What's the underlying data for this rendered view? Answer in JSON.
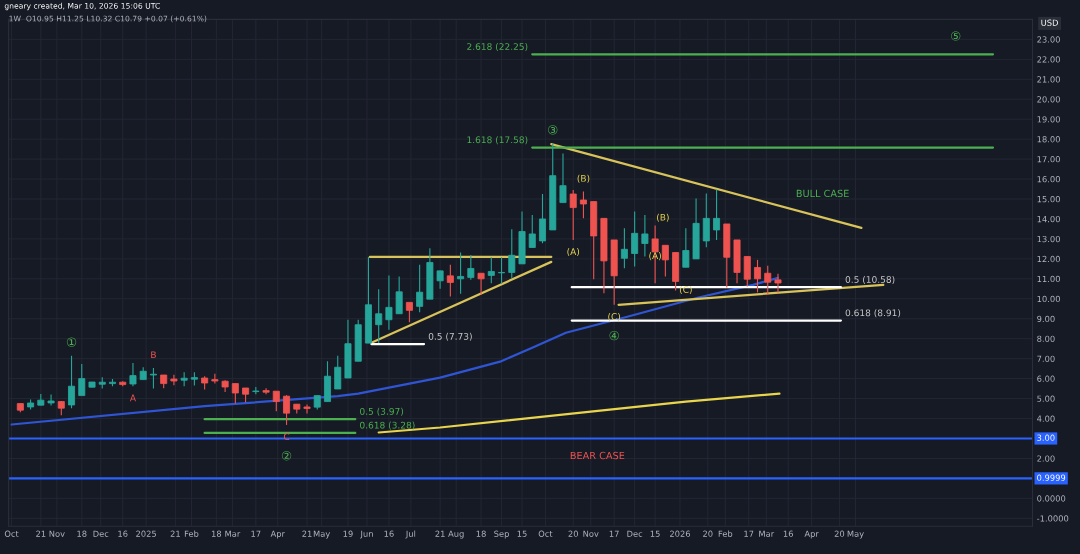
{
  "chart_data": {
    "type": "candlestick",
    "title": "gneary created, Mar 10, 2026 15:06 UTC",
    "subtitle": "1W  O10.95 H11.25 L10.32 C10.79 +0.07 (+0.61%)",
    "ylabel": "USD",
    "x": [
      "2024-10-07",
      "2024-10-14",
      "2024-10-21",
      "2024-10-28",
      "2024-11-04",
      "2024-11-11",
      "2024-11-18",
      "2024-11-25",
      "2024-12-02",
      "2024-12-09",
      "2024-12-16",
      "2024-12-23",
      "2024-12-30",
      "2025-01-06",
      "2025-01-13",
      "2025-01-20",
      "2025-01-27",
      "2025-02-03",
      "2025-02-10",
      "2025-02-17",
      "2025-02-24",
      "2025-03-03",
      "2025-03-10",
      "2025-03-17",
      "2025-03-24",
      "2025-03-31",
      "2025-04-07",
      "2025-04-14",
      "2025-04-21",
      "2025-04-28",
      "2025-05-05",
      "2025-05-12",
      "2025-05-19",
      "2025-05-26",
      "2025-06-02",
      "2025-06-09",
      "2025-06-16",
      "2025-06-23",
      "2025-06-30",
      "2025-07-07",
      "2025-07-14",
      "2025-07-21",
      "2025-07-28",
      "2025-08-04",
      "2025-08-11",
      "2025-08-18",
      "2025-08-25",
      "2025-09-01",
      "2025-09-08",
      "2025-09-15",
      "2025-09-22",
      "2025-09-29",
      "2025-10-06",
      "2025-10-13",
      "2025-10-20",
      "2025-10-27",
      "2025-11-03",
      "2025-11-10",
      "2025-11-17",
      "2025-11-24",
      "2025-12-01",
      "2025-12-08",
      "2025-12-15",
      "2025-12-22",
      "2025-12-29",
      "2026-01-05",
      "2026-01-12",
      "2026-01-19",
      "2026-01-26",
      "2026-02-02",
      "2026-02-09",
      "2026-02-16",
      "2026-02-23",
      "2026-03-02",
      "2026-03-09"
    ],
    "ohlc": [
      [
        4.75,
        4.75,
        4.32,
        4.42
      ],
      [
        4.58,
        4.95,
        4.45,
        4.78
      ],
      [
        4.67,
        5.23,
        4.67,
        4.92
      ],
      [
        4.78,
        5.2,
        4.65,
        4.88
      ],
      [
        4.85,
        4.88,
        4.17,
        4.52
      ],
      [
        4.68,
        7.15,
        4.52,
        5.62
      ],
      [
        5.15,
        6.73,
        5.15,
        6.0
      ],
      [
        5.57,
        5.83,
        5.57,
        5.83
      ],
      [
        5.72,
        6.07,
        5.5,
        5.82
      ],
      [
        5.75,
        5.98,
        5.62,
        5.82
      ],
      [
        5.82,
        5.87,
        5.62,
        5.7
      ],
      [
        5.73,
        6.78,
        5.62,
        6.15
      ],
      [
        5.95,
        6.57,
        5.95,
        6.37
      ],
      [
        6.18,
        6.53,
        5.5,
        6.22
      ],
      [
        6.18,
        6.18,
        5.52,
        5.75
      ],
      [
        5.98,
        6.2,
        5.67,
        5.88
      ],
      [
        5.92,
        6.32,
        5.62,
        6.02
      ],
      [
        5.97,
        6.32,
        5.65,
        6.05
      ],
      [
        6.03,
        6.12,
        5.45,
        5.78
      ],
      [
        5.95,
        6.25,
        5.75,
        5.88
      ],
      [
        5.87,
        5.92,
        5.33,
        5.58
      ],
      [
        5.75,
        5.75,
        4.75,
        5.28
      ],
      [
        5.53,
        5.53,
        4.82,
        5.22
      ],
      [
        5.35,
        5.58,
        5.22,
        5.38
      ],
      [
        5.4,
        5.52,
        5.22,
        5.32
      ],
      [
        5.37,
        5.37,
        4.37,
        4.85
      ],
      [
        5.12,
        5.17,
        3.68,
        4.27
      ],
      [
        4.72,
        4.72,
        4.25,
        4.47
      ],
      [
        4.58,
        4.7,
        4.25,
        4.5
      ],
      [
        4.57,
        5.15,
        4.45,
        5.15
      ],
      [
        4.85,
        6.87,
        4.85,
        6.12
      ],
      [
        5.48,
        7.15,
        5.48,
        6.57
      ],
      [
        6.03,
        8.95,
        6.03,
        7.75
      ],
      [
        6.87,
        8.95,
        6.87,
        8.7
      ],
      [
        7.78,
        12.1,
        7.78,
        9.7
      ],
      [
        8.7,
        10.48,
        7.78,
        9.25
      ],
      [
        8.95,
        11.17,
        8.45,
        9.57
      ],
      [
        9.25,
        11.12,
        9.25,
        10.35
      ],
      [
        9.82,
        9.82,
        8.82,
        9.42
      ],
      [
        9.62,
        11.7,
        9.32,
        10.33
      ],
      [
        9.98,
        12.53,
        9.98,
        11.82
      ],
      [
        10.9,
        11.4,
        10.5,
        11.4
      ],
      [
        11.15,
        11.7,
        10.12,
        10.82
      ],
      [
        11.0,
        12.32,
        10.25,
        11.12
      ],
      [
        11.07,
        12.2,
        10.95,
        11.52
      ],
      [
        11.28,
        11.28,
        10.2,
        11.0
      ],
      [
        11.17,
        12.08,
        10.78,
        11.37
      ],
      [
        11.3,
        12.08,
        10.75,
        11.32
      ],
      [
        11.32,
        13.48,
        11.03,
        12.18
      ],
      [
        11.75,
        14.37,
        11.75,
        13.37
      ],
      [
        12.57,
        14.2,
        12.57,
        13.25
      ],
      [
        12.9,
        15.25,
        12.78,
        14.0
      ],
      [
        13.45,
        17.78,
        13.45,
        16.17
      ],
      [
        14.82,
        17.28,
        14.82,
        15.67
      ],
      [
        15.25,
        15.45,
        12.95,
        14.57
      ],
      [
        14.95,
        15.37,
        14.03,
        14.75
      ],
      [
        14.87,
        14.87,
        10.98,
        13.15
      ],
      [
        14.03,
        14.03,
        10.28,
        11.9
      ],
      [
        12.95,
        12.95,
        9.7,
        11.15
      ],
      [
        12.03,
        13.53,
        11.53,
        12.48
      ],
      [
        12.27,
        14.37,
        11.62,
        13.28
      ],
      [
        12.77,
        14.2,
        12.12,
        13.25
      ],
      [
        13.0,
        13.67,
        10.78,
        12.35
      ],
      [
        12.68,
        12.68,
        11.12,
        11.95
      ],
      [
        12.32,
        12.32,
        10.42,
        10.87
      ],
      [
        11.58,
        13.53,
        11.58,
        12.42
      ],
      [
        12.0,
        15.03,
        12.0,
        13.78
      ],
      [
        12.9,
        15.28,
        12.58,
        14.03
      ],
      [
        13.45,
        15.48,
        12.95,
        14.03
      ],
      [
        13.75,
        13.75,
        10.57,
        12.08
      ],
      [
        12.95,
        12.95,
        10.78,
        11.32
      ],
      [
        12.12,
        12.12,
        10.62,
        10.98
      ],
      [
        11.57,
        11.95,
        10.32,
        11.0
      ],
      [
        11.28,
        11.65,
        10.2,
        10.83
      ],
      [
        10.95,
        11.25,
        10.32,
        10.79
      ]
    ],
    "series": [
      {
        "type": "line",
        "color": "#2f55d4",
        "x": [
          "2024-10-01",
          "2025-02-10",
          "2025-05-12",
          "2025-05-26",
          "2025-07-21",
          "2025-08-31",
          "2025-09-22",
          "2025-10-15",
          "2025-11-26",
          "2026-01-13",
          "2026-02-20",
          "2026-03-09"
        ],
        "values": [
          3.7,
          4.62,
          5.12,
          5.25,
          6.05,
          6.85,
          7.55,
          8.3,
          9.1,
          10.05,
          10.7,
          11.05
        ]
      },
      {
        "type": "line",
        "color": "#e8d44d",
        "x": [
          "2025-06-09",
          "2025-07-21",
          "2025-11-01",
          "2026-01-05",
          "2026-03-10"
        ],
        "values": [
          3.3,
          3.55,
          4.35,
          4.85,
          5.25
        ]
      },
      {
        "type": "line",
        "color": "#d8c25a",
        "x": [
          "2025-06-03",
          "2025-10-05"
        ],
        "values": [
          12.1,
          12.1
        ]
      },
      {
        "type": "line",
        "color": "#d8c25a",
        "x": [
          "2025-06-04",
          "2025-10-05"
        ],
        "values": [
          7.8,
          11.85
        ]
      },
      {
        "type": "line",
        "color": "#d8c25a",
        "x": [
          "2025-10-05",
          "2026-05-05"
        ],
        "values": [
          17.75,
          13.55
        ]
      },
      {
        "type": "line",
        "color": "#d8c25a",
        "x": [
          "2025-11-20",
          "2026-05-20"
        ],
        "values": [
          9.7,
          10.7
        ]
      },
      {
        "type": "line",
        "color": "#4caf50",
        "x": [
          "2025-09-22",
          "2026-08-03"
        ],
        "values": [
          22.25,
          22.25
        ]
      },
      {
        "type": "line",
        "color": "#4caf50",
        "x": [
          "2025-09-22",
          "2026-08-03"
        ],
        "values": [
          17.58,
          17.58
        ]
      },
      {
        "type": "line",
        "color": "#ffffff",
        "x": [
          "2025-10-19",
          "2026-04-21"
        ],
        "values": [
          10.58,
          10.58
        ]
      },
      {
        "type": "line",
        "color": "#ffffff",
        "x": [
          "2025-10-19",
          "2026-04-21"
        ],
        "values": [
          8.91,
          8.91
        ]
      },
      {
        "type": "line",
        "color": "#ffffff",
        "x": [
          "2025-06-04",
          "2025-07-10"
        ],
        "values": [
          7.73,
          7.73
        ]
      },
      {
        "type": "line",
        "color": "#4caf50",
        "x": [
          "2025-02-10",
          "2025-05-24"
        ],
        "values": [
          3.97,
          3.97
        ]
      },
      {
        "type": "line",
        "color": "#4caf50",
        "x": [
          "2025-02-10",
          "2025-05-24"
        ],
        "values": [
          3.28,
          3.28
        ]
      }
    ],
    "ref_lines": [
      {
        "axis": "y",
        "value": 3.0,
        "label": "3.00",
        "color": "#2962ff"
      },
      {
        "axis": "y",
        "value": 0.9999,
        "label": "0.9999",
        "color": "#2962ff"
      }
    ],
    "annotations": [
      {
        "text": "①",
        "x": "2024-11-11",
        "y": 7.15
      },
      {
        "text": "A",
        "x": "2024-12-23",
        "y": 5.62
      },
      {
        "text": "B",
        "x": "2025-01-06",
        "y": 6.53
      },
      {
        "text": "C",
        "x": "2025-04-07",
        "y": 3.68
      },
      {
        "text": "②",
        "x": "2025-04-07",
        "y": 3.68
      },
      {
        "text": "③",
        "x": "2025-10-06",
        "y": 17.78
      },
      {
        "text": "(B)",
        "x": "2025-10-27",
        "y": 15.37
      },
      {
        "text": "(A)",
        "x": "2025-10-20",
        "y": 12.95
      },
      {
        "text": "(C)",
        "x": "2025-11-17",
        "y": 9.7
      },
      {
        "text": "④",
        "x": "2025-11-17",
        "y": 9.7
      },
      "(B)",
      {
        "text": "(A)",
        "x": "2025-12-15",
        "y": 12.12
      },
      {
        "text": "(C)",
        "x": "2026-01-05",
        "y": 10.42
      },
      "⑤",
      "BULL CASE",
      "BEAR CASE",
      {
        "text": "2.618 (22.25)",
        "x": "2025-09-22",
        "y": 22.25
      },
      {
        "text": "1.618 (17.58)",
        "x": "2025-09-22",
        "y": 17.58
      },
      {
        "text": "0.5 (10.58)",
        "x": "2026-04-21",
        "y": 10.58
      },
      {
        "text": "0.618 (8.91)",
        "x": "2026-04-21",
        "y": 8.91
      },
      {
        "text": "0.5 (7.73)",
        "x": "2025-07-10",
        "y": 7.73
      },
      {
        "text": "0.5 (3.97)",
        "x": "2025-05-24",
        "y": 3.97
      },
      {
        "text": "0.618 (3.28)",
        "x": "2025-05-24",
        "y": 3.28
      }
    ],
    "xlim": [
      "2024-09-29",
      "2026-08-30"
    ],
    "xticks": [
      {
        "value": "2024-10-01",
        "label": "Oct"
      },
      {
        "value": "2024-10-21",
        "label": "21"
      },
      {
        "value": "2024-11-01",
        "label": "Nov"
      },
      {
        "value": "2024-11-18",
        "label": "18"
      },
      {
        "value": "2024-12-01",
        "label": "Dec"
      },
      {
        "value": "2024-12-16",
        "label": "16"
      },
      {
        "value": "2025-01-01",
        "label": "2025"
      },
      {
        "value": "2025-01-21",
        "label": "21"
      },
      {
        "value": "2025-02-01",
        "label": "Feb"
      },
      {
        "value": "2025-02-18",
        "label": "18"
      },
      {
        "value": "2025-03-01",
        "label": "Mar"
      },
      {
        "value": "2025-03-17",
        "label": "17"
      },
      {
        "value": "2025-04-01",
        "label": "Apr"
      },
      {
        "value": "2025-04-21",
        "label": "21"
      },
      {
        "value": "2025-05-01",
        "label": "May"
      },
      {
        "value": "2025-05-19",
        "label": "19"
      },
      {
        "value": "2025-06-01",
        "label": "Jun"
      },
      {
        "value": "2025-06-16",
        "label": "16"
      },
      {
        "value": "2025-07-01",
        "label": "Jul"
      },
      {
        "value": "2025-07-21",
        "label": "21"
      },
      {
        "value": "2025-08-01",
        "label": "Aug"
      },
      {
        "value": "2025-08-18",
        "label": "18"
      },
      {
        "value": "2025-09-01",
        "label": "Sep"
      },
      {
        "value": "2025-09-15",
        "label": "15"
      },
      {
        "value": "2025-10-01",
        "label": "Oct"
      },
      {
        "value": "2025-10-20",
        "label": "20"
      },
      {
        "value": "2025-11-01",
        "label": "Nov"
      },
      {
        "value": "2025-11-17",
        "label": "17"
      },
      {
        "value": "2025-12-01",
        "label": "Dec"
      },
      {
        "value": "2025-12-15",
        "label": "15"
      },
      {
        "value": "2026-01-01",
        "label": "2026"
      },
      {
        "value": "2026-01-20",
        "label": "20"
      },
      {
        "value": "2026-02-01",
        "label": "Feb"
      },
      {
        "value": "2026-02-17",
        "label": "17"
      },
      {
        "value": "2026-03-01",
        "label": "Mar"
      },
      {
        "value": "2026-03-16",
        "label": "16"
      },
      {
        "value": "2026-04-01",
        "label": "Apr"
      },
      {
        "value": "2026-04-20",
        "label": "20"
      },
      {
        "value": "2026-05-01",
        "label": "May"
      }
    ],
    "ylim": [
      -1.4,
      24
    ],
    "yticks": [
      {
        "value": 23,
        "label": "23.00"
      },
      {
        "value": 22,
        "label": "22.00"
      },
      {
        "value": 21,
        "label": "21.00"
      },
      {
        "value": 20,
        "label": "20.00"
      },
      {
        "value": 19,
        "label": "19.00"
      },
      {
        "value": 18,
        "label": "18.00"
      },
      {
        "value": 17,
        "label": "17.00"
      },
      {
        "value": 16,
        "label": "16.00"
      },
      {
        "value": 15,
        "label": "15.00"
      },
      {
        "value": 14,
        "label": "14.00"
      },
      {
        "value": 13,
        "label": "13.00"
      },
      {
        "value": 12,
        "label": "12.00"
      },
      {
        "value": 11,
        "label": "11.00"
      },
      {
        "value": 10,
        "label": "10.00"
      },
      {
        "value": 9,
        "label": "9.00"
      },
      {
        "value": 8,
        "label": "8.00"
      },
      {
        "value": 7,
        "label": "7.00"
      },
      {
        "value": 6,
        "label": "6.00"
      },
      {
        "value": 5,
        "label": "5.00"
      },
      {
        "value": 4,
        "label": "4.00"
      },
      {
        "value": 2,
        "label": "2.00"
      },
      {
        "value": 0,
        "label": "0.0000"
      },
      {
        "value": -1,
        "label": "-1.0000"
      }
    ],
    "grid": true,
    "legend": false
  }
}
